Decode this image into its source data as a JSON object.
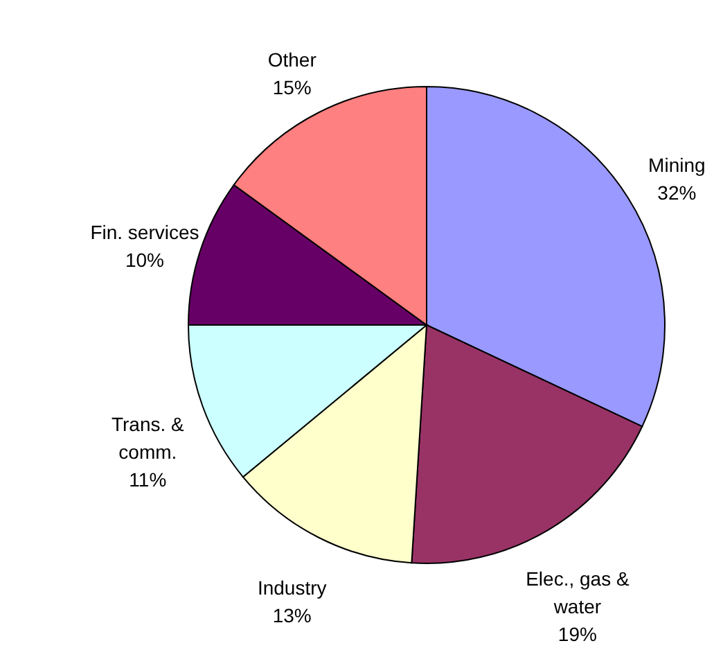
{
  "chart_data": {
    "type": "pie",
    "categories": [
      "Mining",
      "Elec., gas & water",
      "Industry",
      "Trans. & comm.",
      "Fin. services",
      "Other"
    ],
    "values": [
      32,
      19,
      13,
      11,
      10,
      15
    ],
    "value_labels": [
      "32%",
      "19%",
      "13%",
      "11%",
      "10%",
      "15%"
    ],
    "colors": [
      "#9999ff",
      "#993366",
      "#ffffcc",
      "#ccffff",
      "#660066",
      "#ff8080"
    ]
  }
}
